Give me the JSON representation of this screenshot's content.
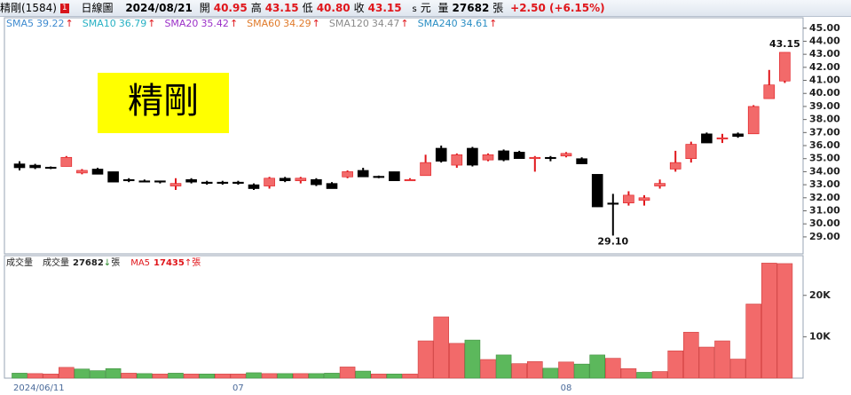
{
  "header": {
    "name": "精剛(1584)",
    "badge": "1",
    "period": "日線圖",
    "date": "2024/08/21",
    "fields": [
      {
        "label": "開",
        "value": "40.95"
      },
      {
        "label": "高",
        "value": "43.15"
      },
      {
        "label": "低",
        "value": "40.80"
      },
      {
        "label": "收",
        "value": "43.15"
      }
    ],
    "mark": "s",
    "currency": "元",
    "volume_label": "量",
    "volume": "27682",
    "volume_unit": "張",
    "change": "+2.50 (+6.15%)",
    "watermark": "精剛"
  },
  "chart_data": [
    {
      "type": "candlestick",
      "legend": [
        {
          "name": "SMA5",
          "value": "39.22",
          "arrow": "↑",
          "color": "#3f8bd0"
        },
        {
          "name": "SMA10",
          "value": "36.79",
          "arrow": "↑",
          "color": "#27b1c4"
        },
        {
          "name": "SMA20",
          "value": "35.42",
          "arrow": "↑",
          "color": "#9b30c8"
        },
        {
          "name": "SMA60",
          "value": "34.29",
          "arrow": "↑",
          "color": "#e07a2a"
        },
        {
          "name": "SMA120",
          "value": "34.47",
          "arrow": "↑",
          "color": "#8a8a8a"
        },
        {
          "name": "SMA240",
          "value": "34.61",
          "arrow": "↑",
          "color": "#2a8ec4"
        }
      ],
      "open": [
        34.6,
        34.5,
        34.35,
        34.4,
        33.9,
        34.2,
        34.0,
        33.4,
        33.3,
        33.3,
        32.9,
        33.4,
        33.2,
        33.2,
        33.2,
        33.0,
        32.9,
        33.5,
        33.3,
        33.4,
        33.1,
        33.6,
        34.1,
        33.65,
        34.0,
        33.4,
        33.7,
        35.8,
        34.5,
        35.8,
        34.9,
        35.6,
        35.5,
        35.0,
        35.1,
        35.2,
        35.0,
        33.8,
        31.6,
        31.6,
        31.8,
        32.9,
        34.2,
        35.0,
        36.9,
        36.5,
        36.9,
        36.9,
        39.6,
        40.95
      ],
      "high": [
        34.8,
        34.6,
        34.4,
        35.2,
        34.2,
        34.3,
        34.0,
        33.5,
        33.4,
        33.3,
        33.5,
        33.5,
        33.3,
        33.3,
        33.3,
        33.1,
        33.6,
        33.6,
        33.6,
        33.5,
        33.2,
        34.1,
        34.3,
        33.7,
        34.0,
        33.5,
        35.3,
        36.0,
        35.4,
        35.9,
        35.4,
        35.7,
        35.6,
        35.2,
        35.2,
        35.5,
        35.1,
        33.8,
        32.3,
        32.5,
        32.2,
        33.4,
        35.6,
        36.3,
        37.0,
        36.9,
        37.0,
        39.1,
        41.8,
        43.15
      ],
      "low": [
        34.1,
        34.2,
        34.2,
        34.4,
        33.8,
        33.8,
        33.2,
        33.2,
        33.2,
        33.1,
        32.6,
        33.1,
        33.0,
        33.0,
        33.0,
        32.6,
        32.7,
        33.2,
        33.1,
        32.9,
        32.7,
        33.5,
        33.6,
        33.5,
        33.3,
        33.3,
        33.7,
        34.7,
        34.3,
        34.4,
        34.8,
        34.8,
        35.0,
        34.0,
        34.8,
        35.1,
        34.6,
        31.3,
        29.1,
        31.4,
        31.4,
        32.7,
        34.0,
        34.7,
        36.2,
        36.2,
        36.6,
        36.9,
        39.6,
        40.8
      ],
      "close": [
        34.3,
        34.3,
        34.3,
        35.1,
        34.1,
        33.8,
        33.2,
        33.3,
        33.2,
        33.2,
        33.1,
        33.2,
        33.1,
        33.1,
        33.1,
        32.7,
        33.5,
        33.3,
        33.5,
        33.0,
        32.7,
        34.0,
        33.6,
        33.6,
        33.3,
        33.4,
        34.7,
        34.8,
        35.3,
        34.5,
        35.3,
        34.9,
        35.0,
        35.1,
        35.0,
        35.4,
        34.6,
        31.3,
        31.5,
        32.2,
        32.0,
        33.1,
        34.7,
        36.1,
        36.2,
        36.6,
        36.7,
        39.0,
        40.65,
        43.15
      ],
      "max_label": "43.15",
      "min_label": "29.10",
      "up_color": "#f26a6a",
      "down_color": "#000000",
      "ylim": [
        27.7,
        45.8
      ],
      "yticks": [
        {
          "value": 29,
          "label": "29.00"
        },
        {
          "value": 30,
          "label": "30.00"
        },
        {
          "value": 31,
          "label": "31.00"
        },
        {
          "value": 32,
          "label": "32.00"
        },
        {
          "value": 33,
          "label": "33.00"
        },
        {
          "value": 34,
          "label": "34.00"
        },
        {
          "value": 35,
          "label": "35.00"
        },
        {
          "value": 36,
          "label": "36.00"
        },
        {
          "value": 37,
          "label": "37.00"
        },
        {
          "value": 38,
          "label": "38.00"
        },
        {
          "value": 39,
          "label": "39.00"
        },
        {
          "value": 40,
          "label": "40.00"
        },
        {
          "value": 41,
          "label": "41.00"
        },
        {
          "value": 42,
          "label": "42.00"
        },
        {
          "value": 43,
          "label": "43.00"
        },
        {
          "value": 44,
          "label": "44.00"
        },
        {
          "value": 45,
          "label": "45.00"
        }
      ]
    },
    {
      "type": "bar",
      "title": "成交量",
      "legend": [
        {
          "name": "成交量",
          "value": "27682",
          "arrow": "↓",
          "unit": "張",
          "color": "#222222",
          "arrow_color": "#2e8b2e"
        },
        {
          "name": "MA5",
          "value": "17435",
          "arrow": "↑",
          "unit": "張",
          "color": "#e0161b",
          "arrow_color": "#e0161b"
        }
      ],
      "categories": [
        "2024/06/11",
        null,
        null,
        null,
        null,
        null,
        null,
        null,
        null,
        null,
        null,
        null,
        null,
        null,
        "07",
        null,
        null,
        null,
        null,
        null,
        null,
        null,
        null,
        null,
        null,
        null,
        null,
        null,
        null,
        null,
        null,
        null,
        null,
        null,
        null,
        "08",
        null,
        null,
        null,
        null,
        null,
        null,
        null,
        null,
        null,
        null,
        null,
        null,
        null,
        null
      ],
      "values": [
        1200,
        1100,
        1000,
        2600,
        2200,
        1800,
        2300,
        1200,
        1100,
        1000,
        1200,
        1000,
        1000,
        1000,
        1000,
        1300,
        1100,
        1100,
        1100,
        1100,
        1200,
        2700,
        1700,
        1000,
        1000,
        1000,
        9000,
        14800,
        8400,
        9200,
        4500,
        5600,
        3500,
        4000,
        2400,
        3900,
        3400,
        5600,
        4800,
        2300,
        1400,
        1600,
        6600,
        11100,
        7500,
        9000,
        4600,
        17900,
        27800,
        27682
      ],
      "up_color": "#f26a6a",
      "down_color": "#5cb85c",
      "ylim": [
        0,
        29600
      ],
      "yticks": [
        {
          "value": 10000,
          "label": "10K"
        },
        {
          "value": 20000,
          "label": "20K"
        }
      ]
    }
  ]
}
